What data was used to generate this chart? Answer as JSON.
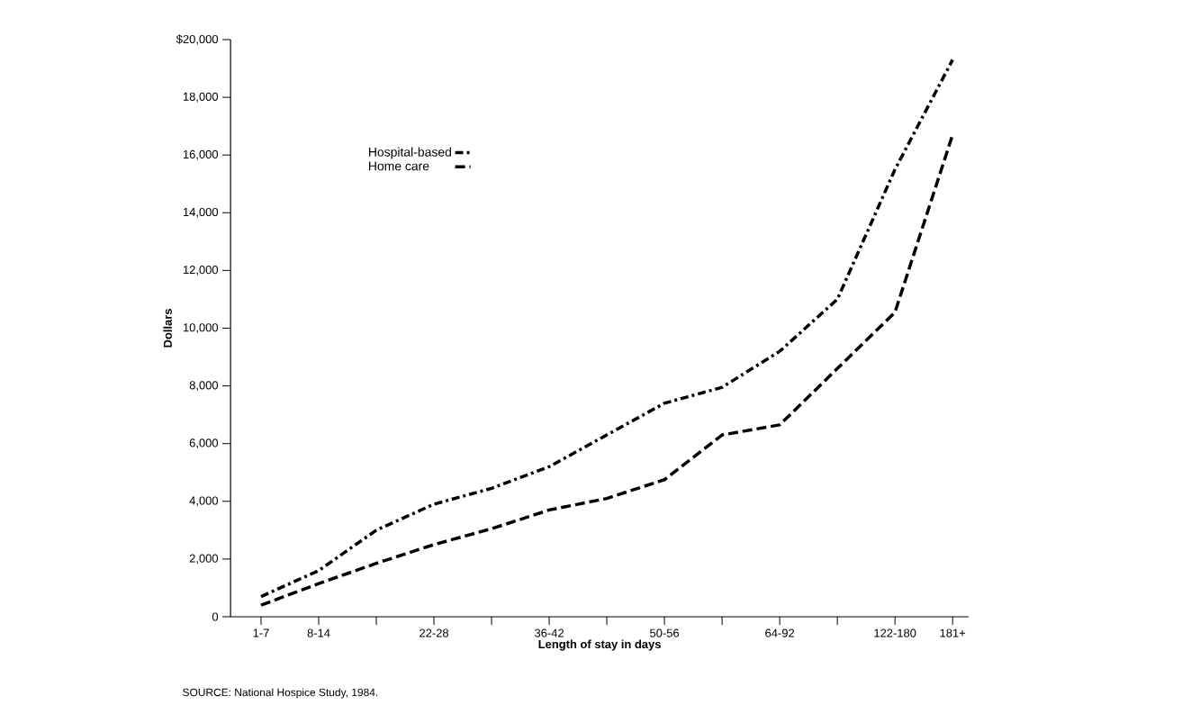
{
  "chart_data": {
    "type": "line",
    "xlabel": "Length of stay in days",
    "ylabel": "Dollars",
    "categories": [
      "1-7",
      "8-14",
      null,
      "22-28",
      null,
      "36-42",
      null,
      "50-56",
      null,
      "64-92",
      null,
      "122-180",
      "181+"
    ],
    "series": [
      {
        "name": "Hospital-based",
        "color": "#000000",
        "line_style": "dashdot",
        "values": [
          700,
          1600,
          3000,
          3900,
          4450,
          5200,
          6300,
          7400,
          7950,
          9200,
          11000,
          15500,
          19300
        ]
      },
      {
        "name": "Home care",
        "color": "#000000",
        "line_style": "dashed",
        "values": [
          400,
          1150,
          1850,
          2500,
          3050,
          3700,
          4100,
          4750,
          6300,
          6650,
          8600,
          10550,
          16700
        ]
      }
    ],
    "ylim": [
      0,
      20000
    ],
    "yticks": [
      {
        "value": 0,
        "label": "0"
      },
      {
        "value": 2000,
        "label": "2,000"
      },
      {
        "value": 4000,
        "label": "4,000"
      },
      {
        "value": 6000,
        "label": "6,000"
      },
      {
        "value": 8000,
        "label": "8,000"
      },
      {
        "value": 10000,
        "label": "10,000"
      },
      {
        "value": 12000,
        "label": "12,000"
      },
      {
        "value": 14000,
        "label": "14,000"
      },
      {
        "value": 16000,
        "label": "16,000"
      },
      {
        "value": 18000,
        "label": "18,000"
      },
      {
        "value": 20000,
        "label": "$20,000"
      }
    ],
    "legend": "top left",
    "grid": false,
    "marker": "none",
    "annotations": [
      "SOURCE: National Hospice Study, 1984."
    ]
  }
}
